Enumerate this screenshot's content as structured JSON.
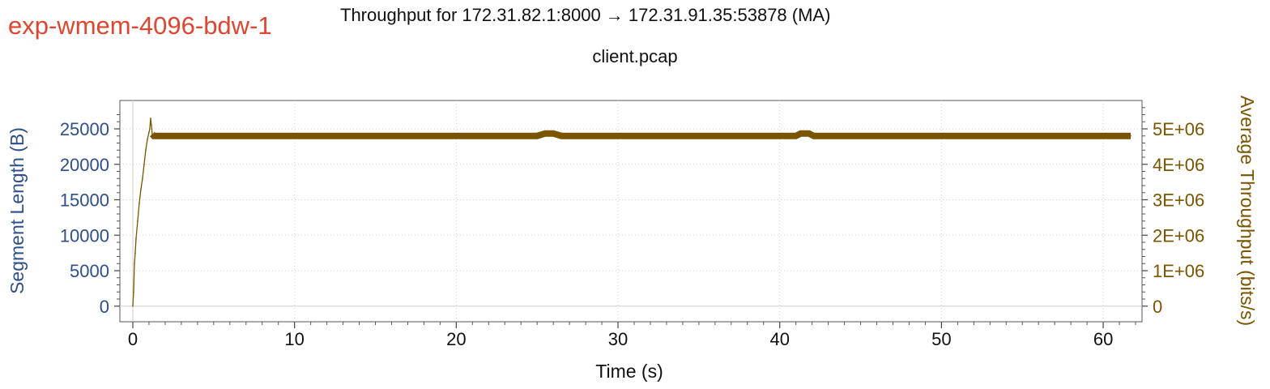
{
  "window": {
    "experiment_tag": "exp-wmem-4096-bdw-1"
  },
  "chart_data": {
    "type": "line",
    "title": "Throughput for 172.31.82.1:8000 → 172.31.91.35:53878 (MA)",
    "subtitle": "client.pcap",
    "xlabel": "Time (s)",
    "ylabel_left": "Segment Length (B)",
    "ylabel_right": "Average Throughput (bits/s)",
    "xlim": [
      -0.8,
      62.4
    ],
    "ylim_left": [
      -2200,
      29000
    ],
    "ylim_right": [
      -440000,
      5800000
    ],
    "x_ticks": [
      0,
      10,
      20,
      30,
      40,
      50,
      60
    ],
    "x_tick_labels": [
      "0",
      "10",
      "20",
      "30",
      "40",
      "50",
      "60"
    ],
    "y_left_ticks": [
      0,
      5000,
      10000,
      15000,
      20000,
      25000
    ],
    "y_left_tick_labels": [
      "0",
      "5000",
      "10000",
      "15000",
      "20000",
      "25000"
    ],
    "y_right_ticks": [
      0,
      1000000,
      2000000,
      3000000,
      4000000,
      5000000
    ],
    "y_right_tick_labels": [
      "0",
      "1E+06",
      "2E+06",
      "3E+06",
      "4E+06",
      "5E+06"
    ],
    "grid": true,
    "colors": {
      "series": "#7a5500",
      "left_axis": "#2e4f8a",
      "right_axis": "#7a5500",
      "tag": "#e0452f"
    },
    "series": [
      {
        "name": "Average Throughput (bits/s)",
        "axis": "right",
        "x": [
          0.0,
          0.05,
          0.1,
          0.15,
          0.2,
          0.3,
          0.4,
          0.5,
          0.6,
          0.7,
          0.8,
          0.9,
          1.0,
          1.05,
          1.1,
          1.15,
          1.2,
          1.3,
          1.5,
          2,
          5,
          10,
          15,
          20,
          25,
          25.5,
          26,
          26.5,
          27,
          30,
          35,
          40,
          41,
          41.3,
          41.8,
          42.1,
          42.5,
          45,
          50,
          55,
          60,
          61.7
        ],
        "values": [
          0,
          400000,
          1200000,
          1500000,
          1900000,
          2400000,
          2900000,
          3300000,
          3600000,
          4000000,
          4400000,
          4700000,
          4900000,
          5000000,
          5300000,
          5100000,
          4850000,
          4800000,
          4800000,
          4800000,
          4800000,
          4800000,
          4800000,
          4800000,
          4800000,
          4870000,
          4870000,
          4800000,
          4800000,
          4800000,
          4800000,
          4800000,
          4800000,
          4870000,
          4870000,
          4800000,
          4800000,
          4800000,
          4800000,
          4800000,
          4800000,
          4800000
        ]
      }
    ]
  }
}
